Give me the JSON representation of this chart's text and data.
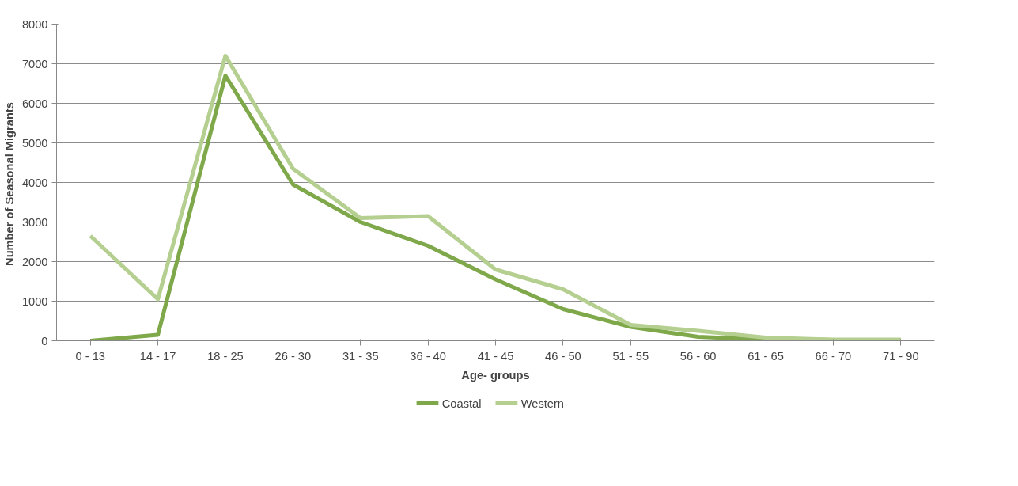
{
  "chart_data": {
    "type": "line",
    "xlabel": "Age- groups",
    "ylabel": "Number of Seasonal  Migrants",
    "categories": [
      "0 - 13",
      "14 - 17",
      "18 - 25",
      "26 - 30",
      "31 - 35",
      "36 - 40",
      "41 - 45",
      "46 - 50",
      "51 - 55",
      "56 - 60",
      "61 - 65",
      "66 - 70",
      "71 - 90"
    ],
    "series": [
      {
        "name": "Coastal",
        "color": "#7ea84a",
        "values": [
          0,
          150,
          6700,
          3950,
          3000,
          2400,
          1550,
          800,
          350,
          100,
          30,
          20,
          20
        ]
      },
      {
        "name": "Western",
        "color": "#b4cf8f",
        "values": [
          2650,
          1050,
          7200,
          4350,
          3100,
          3150,
          1800,
          1300,
          400,
          250,
          80,
          30,
          30
        ]
      }
    ],
    "ylim": [
      0,
      8000
    ],
    "yticks": [
      0,
      1000,
      2000,
      3000,
      4000,
      5000,
      6000,
      7000,
      8000
    ],
    "grid": "y",
    "legend": "bottom",
    "marker": "none",
    "line_style": "solid"
  }
}
